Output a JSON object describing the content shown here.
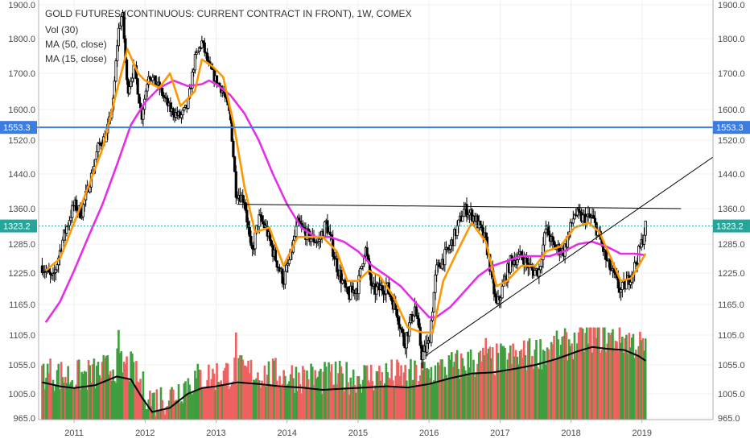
{
  "chart_data": {
    "type": "candlestick",
    "title": "GOLD FUTURES (CONTINUOUS: CURRENT CONTRACT IN FRONT), 1W, COMEX",
    "legend": [
      "Vol (30)",
      "MA (50, close)",
      "MA (15, close)"
    ],
    "y_ticks": [
      "1900.0",
      "1800.0",
      "1700.0",
      "1600.0",
      "1520.0",
      "1440.0",
      "1360.0",
      "1285.0",
      "1225.0",
      "1165.0",
      "1105.0",
      "1055.0",
      "1005.0",
      "965.0"
    ],
    "y_tick_values": [
      1900,
      1800,
      1700,
      1600,
      1520,
      1440,
      1360,
      1285,
      1225,
      1165,
      1105,
      1055,
      1005,
      965
    ],
    "x_ticks": [
      "2011",
      "2012",
      "2013",
      "2014",
      "2015",
      "2016",
      "2017",
      "2018",
      "2019"
    ],
    "x_tick_values": [
      2011,
      2012,
      2013,
      2014,
      2015,
      2016,
      2017,
      2018,
      2019
    ],
    "x_range": [
      2010.5,
      2020.0
    ],
    "price_keypoints": [
      [
        2010.55,
        1240
      ],
      [
        2010.7,
        1210
      ],
      [
        2010.85,
        1300
      ],
      [
        2011.0,
        1370
      ],
      [
        2011.1,
        1350
      ],
      [
        2011.25,
        1440
      ],
      [
        2011.35,
        1510
      ],
      [
        2011.45,
        1530
      ],
      [
        2011.55,
        1620
      ],
      [
        2011.62,
        1820
      ],
      [
        2011.68,
        1880
      ],
      [
        2011.75,
        1650
      ],
      [
        2011.85,
        1720
      ],
      [
        2011.95,
        1580
      ],
      [
        2012.05,
        1700
      ],
      [
        2012.2,
        1660
      ],
      [
        2012.35,
        1600
      ],
      [
        2012.5,
        1580
      ],
      [
        2012.6,
        1610
      ],
      [
        2012.7,
        1740
      ],
      [
        2012.8,
        1790
      ],
      [
        2012.9,
        1720
      ],
      [
        2013.0,
        1680
      ],
      [
        2013.1,
        1650
      ],
      [
        2013.2,
        1580
      ],
      [
        2013.28,
        1400
      ],
      [
        2013.4,
        1380
      ],
      [
        2013.5,
        1260
      ],
      [
        2013.6,
        1340
      ],
      [
        2013.7,
        1320
      ],
      [
        2013.8,
        1270
      ],
      [
        2013.95,
        1210
      ],
      [
        2014.05,
        1260
      ],
      [
        2014.15,
        1330
      ],
      [
        2014.3,
        1300
      ],
      [
        2014.45,
        1290
      ],
      [
        2014.55,
        1330
      ],
      [
        2014.7,
        1240
      ],
      [
        2014.85,
        1180
      ],
      [
        2015.0,
        1200
      ],
      [
        2015.1,
        1280
      ],
      [
        2015.2,
        1190
      ],
      [
        2015.4,
        1200
      ],
      [
        2015.55,
        1150
      ],
      [
        2015.65,
        1090
      ],
      [
        2015.8,
        1160
      ],
      [
        2015.9,
        1070
      ],
      [
        2016.0,
        1090
      ],
      [
        2016.1,
        1230
      ],
      [
        2016.3,
        1280
      ],
      [
        2016.5,
        1360
      ],
      [
        2016.65,
        1340
      ],
      [
        2016.8,
        1290
      ],
      [
        2016.95,
        1160
      ],
      [
        2017.0,
        1180
      ],
      [
        2017.15,
        1250
      ],
      [
        2017.3,
        1260
      ],
      [
        2017.45,
        1230
      ],
      [
        2017.55,
        1230
      ],
      [
        2017.65,
        1320
      ],
      [
        2017.75,
        1280
      ],
      [
        2017.9,
        1270
      ],
      [
        2018.05,
        1350
      ],
      [
        2018.15,
        1340
      ],
      [
        2018.3,
        1340
      ],
      [
        2018.4,
        1300
      ],
      [
        2018.5,
        1250
      ],
      [
        2018.6,
        1220
      ],
      [
        2018.7,
        1190
      ],
      [
        2018.8,
        1210
      ],
      [
        2018.9,
        1240
      ],
      [
        2019.0,
        1290
      ],
      [
        2019.05,
        1323
      ]
    ],
    "series": [
      {
        "name": "MA (50, close)",
        "color": "#e62ee6",
        "points": [
          [
            2010.6,
            1130
          ],
          [
            2010.8,
            1170
          ],
          [
            2011.0,
            1230
          ],
          [
            2011.2,
            1300
          ],
          [
            2011.4,
            1370
          ],
          [
            2011.6,
            1460
          ],
          [
            2011.8,
            1560
          ],
          [
            2012.0,
            1620
          ],
          [
            2012.2,
            1660
          ],
          [
            2012.4,
            1680
          ],
          [
            2012.6,
            1665
          ],
          [
            2012.8,
            1670
          ],
          [
            2012.9,
            1680
          ],
          [
            2013.0,
            1670
          ],
          [
            2013.2,
            1640
          ],
          [
            2013.4,
            1590
          ],
          [
            2013.6,
            1520
          ],
          [
            2013.8,
            1440
          ],
          [
            2014.0,
            1370
          ],
          [
            2014.2,
            1320
          ],
          [
            2014.4,
            1300
          ],
          [
            2014.6,
            1300
          ],
          [
            2014.8,
            1290
          ],
          [
            2015.0,
            1270
          ],
          [
            2015.2,
            1240
          ],
          [
            2015.4,
            1220
          ],
          [
            2015.6,
            1200
          ],
          [
            2015.8,
            1170
          ],
          [
            2016.0,
            1140
          ],
          [
            2016.1,
            1140
          ],
          [
            2016.3,
            1160
          ],
          [
            2016.5,
            1190
          ],
          [
            2016.7,
            1220
          ],
          [
            2016.9,
            1240
          ],
          [
            2017.1,
            1250
          ],
          [
            2017.3,
            1260
          ],
          [
            2017.5,
            1260
          ],
          [
            2017.7,
            1260
          ],
          [
            2017.9,
            1270
          ],
          [
            2018.1,
            1285
          ],
          [
            2018.3,
            1290
          ],
          [
            2018.5,
            1280
          ],
          [
            2018.7,
            1265
          ],
          [
            2018.9,
            1265
          ],
          [
            2019.05,
            1262
          ]
        ]
      },
      {
        "name": "MA (15, close)",
        "color": "#ff9800",
        "points": [
          [
            2010.6,
            1230
          ],
          [
            2010.8,
            1255
          ],
          [
            2011.0,
            1330
          ],
          [
            2011.2,
            1410
          ],
          [
            2011.4,
            1500
          ],
          [
            2011.6,
            1650
          ],
          [
            2011.75,
            1770
          ],
          [
            2011.9,
            1700
          ],
          [
            2012.0,
            1680
          ],
          [
            2012.2,
            1660
          ],
          [
            2012.35,
            1700
          ],
          [
            2012.5,
            1610
          ],
          [
            2012.7,
            1650
          ],
          [
            2012.8,
            1740
          ],
          [
            2012.95,
            1720
          ],
          [
            2013.1,
            1690
          ],
          [
            2013.25,
            1560
          ],
          [
            2013.4,
            1410
          ],
          [
            2013.55,
            1310
          ],
          [
            2013.75,
            1320
          ],
          [
            2013.95,
            1240
          ],
          [
            2014.15,
            1300
          ],
          [
            2014.3,
            1300
          ],
          [
            2014.5,
            1300
          ],
          [
            2014.7,
            1270
          ],
          [
            2014.85,
            1210
          ],
          [
            2015.0,
            1210
          ],
          [
            2015.15,
            1230
          ],
          [
            2015.3,
            1220
          ],
          [
            2015.5,
            1180
          ],
          [
            2015.7,
            1120
          ],
          [
            2015.9,
            1110
          ],
          [
            2016.05,
            1110
          ],
          [
            2016.2,
            1210
          ],
          [
            2016.4,
            1270
          ],
          [
            2016.6,
            1330
          ],
          [
            2016.8,
            1290
          ],
          [
            2016.95,
            1200
          ],
          [
            2017.1,
            1210
          ],
          [
            2017.3,
            1240
          ],
          [
            2017.5,
            1240
          ],
          [
            2017.65,
            1270
          ],
          [
            2017.85,
            1280
          ],
          [
            2018.05,
            1320
          ],
          [
            2018.25,
            1330
          ],
          [
            2018.4,
            1310
          ],
          [
            2018.55,
            1260
          ],
          [
            2018.7,
            1210
          ],
          [
            2018.85,
            1215
          ],
          [
            2019.05,
            1265
          ]
        ]
      }
    ],
    "trendlines": [
      {
        "name": "resistance",
        "color": "#000000",
        "points": [
          [
            2013.3,
            1370
          ],
          [
            2019.55,
            1360
          ]
        ]
      },
      {
        "name": "support",
        "color": "#000000",
        "points": [
          [
            2015.95,
            1070
          ],
          [
            2020.0,
            1480
          ]
        ]
      }
    ],
    "horizontal_levels": [
      {
        "value": 1553.3,
        "label": "1553.3",
        "color": "#3d7ce0"
      },
      {
        "value": 1323.2,
        "label": "1323.2",
        "color": "#26a69a"
      }
    ],
    "volume": {
      "up_color": "#3e9f3e",
      "down_color": "#ef6060",
      "avg_color": "#000000",
      "avg_points": [
        [
          2010.55,
          1025
        ],
        [
          2010.8,
          1018
        ],
        [
          2011.0,
          1015
        ],
        [
          2011.3,
          1020
        ],
        [
          2011.6,
          1035
        ],
        [
          2011.8,
          1030
        ],
        [
          2011.95,
          1000
        ],
        [
          2012.1,
          975
        ],
        [
          2012.35,
          982
        ],
        [
          2012.6,
          1005
        ],
        [
          2012.8,
          1015
        ],
        [
          2013.0,
          1018
        ],
        [
          2013.3,
          1025
        ],
        [
          2013.6,
          1022
        ],
        [
          2013.9,
          1018
        ],
        [
          2014.2,
          1016
        ],
        [
          2014.5,
          1012
        ],
        [
          2014.8,
          1014
        ],
        [
          2015.1,
          1016
        ],
        [
          2015.4,
          1018
        ],
        [
          2015.7,
          1016
        ],
        [
          2016.0,
          1022
        ],
        [
          2016.3,
          1032
        ],
        [
          2016.6,
          1040
        ],
        [
          2016.9,
          1042
        ],
        [
          2017.2,
          1048
        ],
        [
          2017.5,
          1055
        ],
        [
          2017.8,
          1065
        ],
        [
          2018.1,
          1078
        ],
        [
          2018.3,
          1085
        ],
        [
          2018.5,
          1082
        ],
        [
          2018.75,
          1080
        ],
        [
          2018.95,
          1070
        ],
        [
          2019.05,
          1062
        ]
      ],
      "spikes": [
        [
          2011.62,
          1115
        ],
        [
          2013.28,
          1110
        ],
        [
          2016.8,
          1100
        ],
        [
          2017.4,
          1095
        ],
        [
          2018.05,
          1110
        ]
      ]
    }
  }
}
